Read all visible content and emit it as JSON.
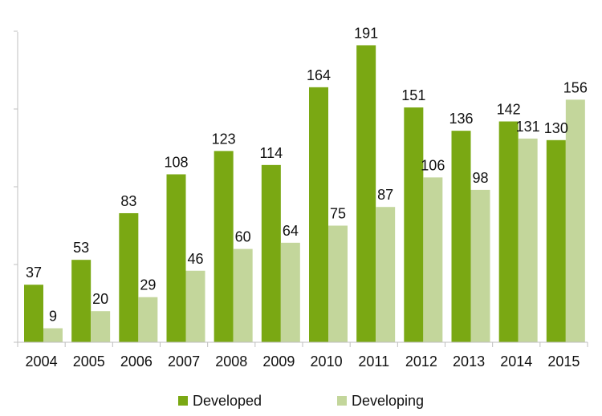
{
  "chart_data": {
    "type": "bar",
    "categories": [
      "2004",
      "2005",
      "2006",
      "2007",
      "2008",
      "2009",
      "2010",
      "2011",
      "2012",
      "2013",
      "2014",
      "2015"
    ],
    "series": [
      {
        "name": "Developed",
        "color": "#7aa813",
        "values": [
          37,
          53,
          83,
          108,
          123,
          114,
          164,
          191,
          151,
          136,
          142,
          130
        ]
      },
      {
        "name": "Developing",
        "color": "#c3d69b",
        "values": [
          9,
          20,
          29,
          46,
          60,
          64,
          75,
          87,
          106,
          98,
          131,
          156
        ]
      }
    ],
    "title": "",
    "xlabel": "",
    "ylabel": "",
    "ylim": [
      0,
      200
    ],
    "grid": false,
    "legend_position": "bottom",
    "data_labels": true
  }
}
